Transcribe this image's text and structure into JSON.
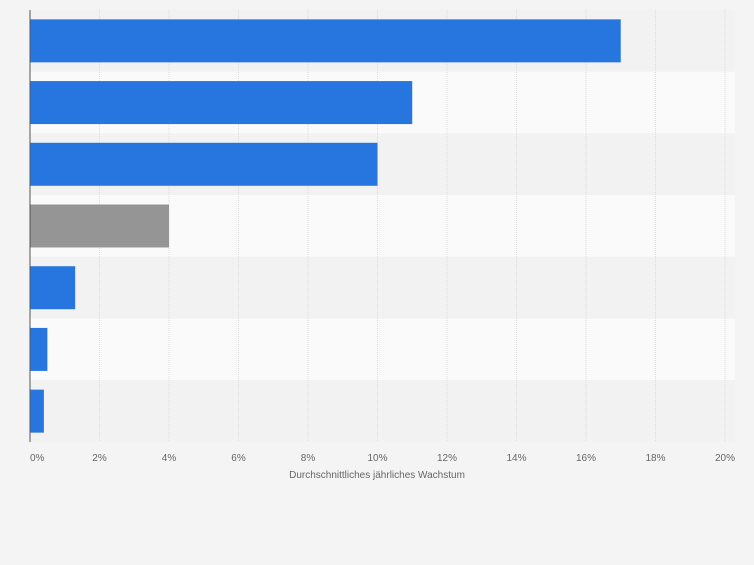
{
  "chart_data": {
    "type": "bar",
    "orientation": "horizontal",
    "categories": [
      "",
      "",
      "",
      "",
      "",
      "",
      ""
    ],
    "values": [
      17.0,
      11.0,
      10.0,
      4.0,
      1.3,
      0.5,
      0.4
    ],
    "highlight_index": 3,
    "colors": {
      "bar": "#2776e0",
      "highlight": "#959595",
      "grid": "#dcdcdc",
      "band_light": "#fafafa",
      "band_dark": "#f2f2f2"
    },
    "xlim": [
      0,
      20
    ],
    "xticks": [
      0,
      2,
      4,
      6,
      8,
      10,
      12,
      14,
      16,
      18,
      20
    ],
    "xtick_labels": [
      "0%",
      "2%",
      "4%",
      "6%",
      "8%",
      "10%",
      "12%",
      "14%",
      "16%",
      "18%",
      "20%"
    ],
    "xlabel": "Durchschnittliches jährliches Wachstum",
    "ylabel": "",
    "title": "",
    "grid": true,
    "legend": "none"
  }
}
